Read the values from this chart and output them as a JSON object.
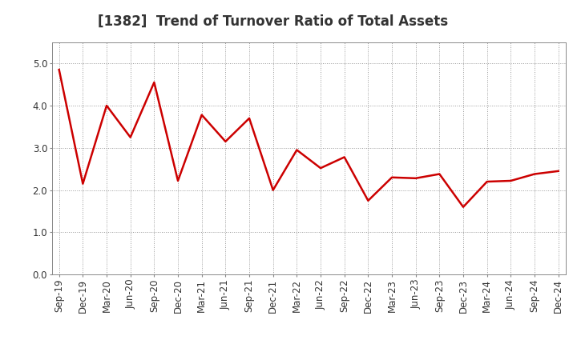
{
  "title": "[1382]  Trend of Turnover Ratio of Total Assets",
  "x_labels": [
    "Sep-19",
    "Dec-19",
    "Mar-20",
    "Jun-20",
    "Sep-20",
    "Dec-20",
    "Mar-21",
    "Jun-21",
    "Sep-21",
    "Dec-21",
    "Mar-22",
    "Jun-22",
    "Sep-22",
    "Dec-22",
    "Mar-23",
    "Jun-23",
    "Sep-23",
    "Dec-23",
    "Mar-24",
    "Jun-24",
    "Sep-24",
    "Dec-24"
  ],
  "y_values": [
    4.85,
    2.15,
    4.0,
    3.25,
    4.55,
    2.22,
    3.78,
    3.15,
    3.7,
    2.0,
    2.95,
    2.52,
    2.78,
    1.75,
    2.3,
    2.28,
    2.38,
    1.6,
    2.2,
    2.22,
    2.38,
    2.45
  ],
  "line_color": "#cc0000",
  "line_width": 1.8,
  "ylim": [
    0.0,
    5.5
  ],
  "yticks": [
    0.0,
    1.0,
    2.0,
    3.0,
    4.0,
    5.0
  ],
  "ytick_labels": [
    "0.0",
    "1.0",
    "2.0",
    "3.0",
    "4.0",
    "5.0"
  ],
  "grid_color": "#999999",
  "background_color": "#ffffff",
  "title_fontsize": 12,
  "tick_fontsize": 8.5
}
